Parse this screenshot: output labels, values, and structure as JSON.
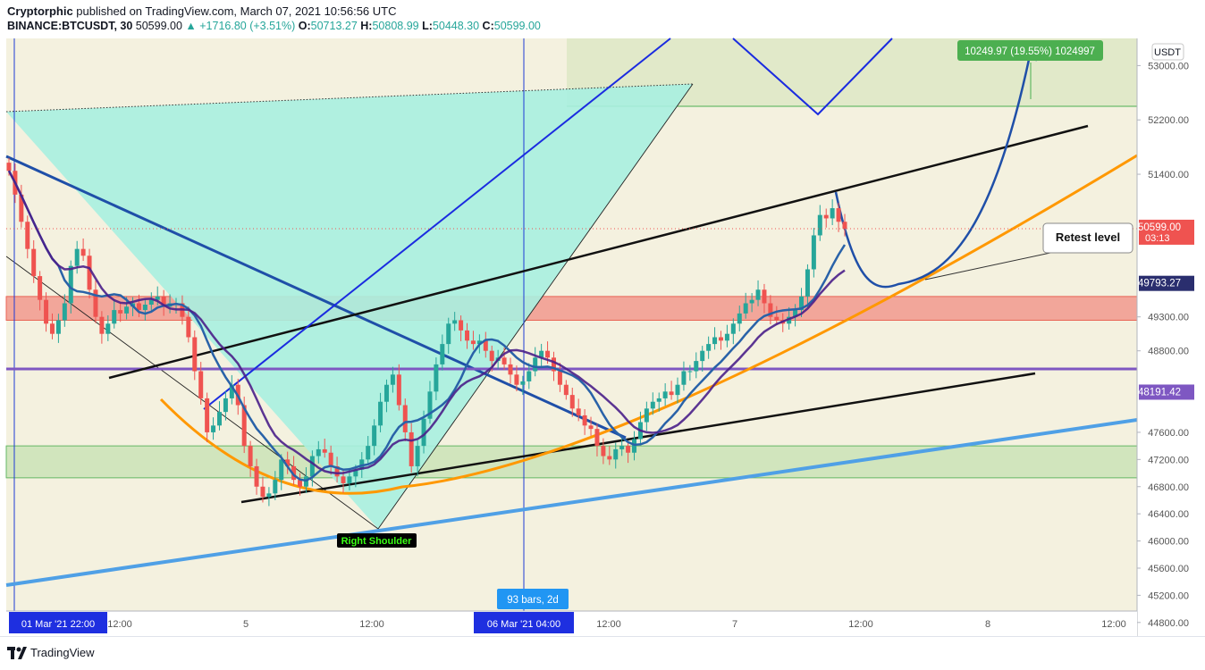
{
  "header": {
    "author": "Cryptorphic",
    "published_text": "published on TradingView.com, March 07, 2021 10:56:56 UTC",
    "symbol": "BINANCE:BTCUSDT, 30",
    "last": "50599.00",
    "change": "▲ +1716.80 (+3.51%)",
    "o_label": "O:",
    "o_value": "50713.27",
    "h_label": "H:",
    "h_value": "50808.99",
    "l_label": "L:",
    "l_value": "50448.30",
    "c_label": "C:",
    "c_value": "50599.00"
  },
  "footer": {
    "brand": "TradingView"
  },
  "colors": {
    "bg": "#f4f1df",
    "up": "#26a69a",
    "down": "#ef5350",
    "triangle": "#a9f0e0",
    "resistance_zone": "#f29a8e",
    "support_zone": "#cce3b8",
    "target_zone": "#dde8c6",
    "orange": "#ff9800",
    "blue_line": "#4fa0e6",
    "purple_line": "#7e57c2"
  },
  "chart_data": {
    "type": "candlestick",
    "currency": "USDT",
    "ylim": [
      44600,
      53400
    ],
    "x_ticks": [
      "01 Mar '21  22:00",
      "12:00",
      "5",
      "12:00",
      "06 Mar '21  04:00",
      "12:00",
      "7",
      "12:00",
      "8",
      "12:00"
    ],
    "y_ticks": [
      53000,
      52200,
      51400,
      49300,
      48800,
      47600,
      47200,
      46800,
      46400,
      46000,
      45600,
      45200,
      44800
    ],
    "price_labels": [
      {
        "text": "50599.00",
        "sub": "03:13",
        "value": 50599,
        "color": "#ef5350"
      },
      {
        "text": "49793.27",
        "value": 49793.27,
        "color": "#2a2e6e"
      },
      {
        "text": "48191.42",
        "value": 48191.42,
        "color": "#7e57c2"
      }
    ],
    "annotations": {
      "target": "10249.97 (19.55%) 1024997",
      "retest": "Retest level",
      "shoulder": "Right Shoulder",
      "range": "93 bars, 2d"
    },
    "zones": {
      "resistance": [
        49250,
        49600
      ],
      "support": [
        46930,
        47400
      ],
      "target": [
        52400,
        53400
      ]
    },
    "closes": [
      51450,
      51100,
      50700,
      50300,
      49900,
      49550,
      49200,
      49050,
      49250,
      49500,
      50050,
      50300,
      50200,
      49700,
      49300,
      49050,
      49200,
      49400,
      49350,
      49450,
      49500,
      49400,
      49480,
      49550,
      49600,
      49450,
      49500,
      49500,
      49300,
      49000,
      48500,
      48100,
      47600,
      47700,
      47900,
      48100,
      48300,
      48000,
      47400,
      47100,
      46800,
      46650,
      46700,
      46900,
      47200,
      47100,
      46900,
      46800,
      46950,
      47250,
      47350,
      47300,
      47100,
      46950,
      46850,
      46950,
      47050,
      47200,
      47400,
      47700,
      48050,
      48300,
      48450,
      48000,
      47600,
      47100,
      47400,
      47800,
      48200,
      48600,
      48900,
      49200,
      49250,
      49100,
      48950,
      48900,
      48950,
      48800,
      48650,
      48700,
      48600,
      48450,
      48300,
      48350,
      48500,
      48700,
      48800,
      48700,
      48500,
      48300,
      48150,
      47950,
      47850,
      47700,
      47650,
      47400,
      47250,
      47200,
      47350,
      47400,
      47300,
      47500,
      47750,
      47950,
      48050,
      48100,
      48200,
      48150,
      48300,
      48500,
      48500,
      48650,
      48800,
      48900,
      49000,
      48950,
      49050,
      49200,
      49350,
      49500,
      49550,
      49700,
      49500,
      49300,
      49250,
      49200,
      49300,
      49400,
      49600,
      50000,
      50500,
      50800,
      50750,
      50900,
      50700,
      50599
    ]
  }
}
